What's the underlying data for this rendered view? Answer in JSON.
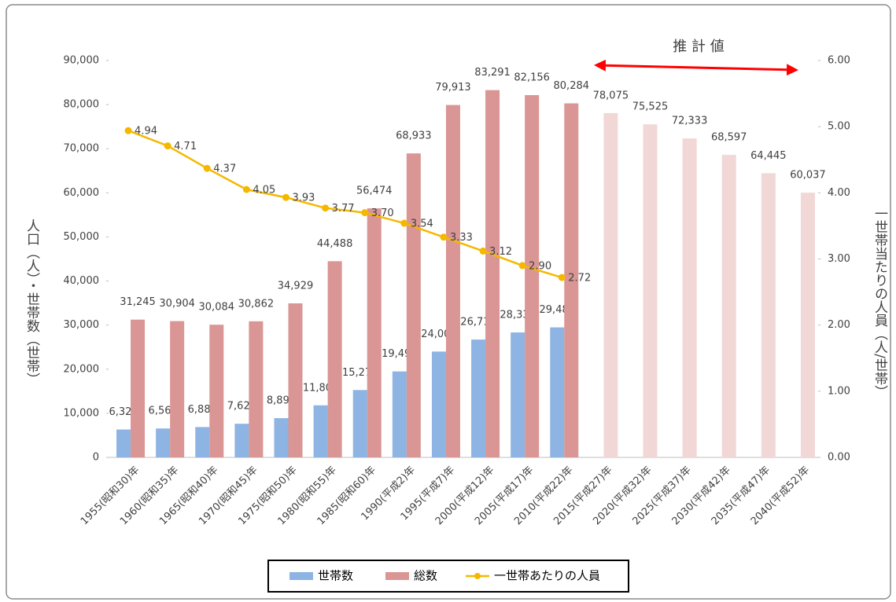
{
  "chart_data": {
    "type": "bar_line",
    "categories": [
      "1955(昭和30)年",
      "1960(昭和35)年",
      "1965(昭和40)年",
      "1970(昭和45)年",
      "1975(昭和50)年",
      "1980(昭和55)年",
      "1985(昭和60)年",
      "1990(平成2)年",
      "1995(平成7)年",
      "2000(平成12)年",
      "2005(平成17)年",
      "2010(平成22)年",
      "2015(平成27)年",
      "2020(平成32)年",
      "2025(平成37)年",
      "2030(平成42)年",
      "2035(平成47)年",
      "2040(平成52)年"
    ],
    "series": [
      {
        "name": "世帯数",
        "type": "bar",
        "color": "#8db4e2",
        "values": [
          6325,
          6564,
          6882,
          7627,
          8899,
          11803,
          15272,
          19490,
          24005,
          26716,
          28334,
          29481,
          null,
          null,
          null,
          null,
          null,
          null
        ],
        "value_labels": [
          "6,325",
          "6,564",
          "6,882",
          "7,627",
          "8,899",
          "11,803",
          "15,272",
          "19,490",
          "24,005",
          "26,716",
          "28,334",
          "29,481",
          null,
          null,
          null,
          null,
          null,
          null
        ]
      },
      {
        "name": "総数",
        "type": "bar",
        "color": "#d99694",
        "colors": [
          "#d99694",
          "#d99694",
          "#d99694",
          "#d99694",
          "#d99694",
          "#d99694",
          "#d99694",
          "#d99694",
          "#d99694",
          "#d99694",
          "#d99694",
          "#d99694",
          "#f2d7d7",
          "#f2d7d7",
          "#f2d7d7",
          "#f2d7d7",
          "#f2d7d7",
          "#f2d7d7"
        ],
        "values": [
          31245,
          30904,
          30084,
          30862,
          34929,
          44488,
          56474,
          68933,
          79913,
          83291,
          82156,
          80284,
          78075,
          75525,
          72333,
          68597,
          64445,
          60037
        ],
        "value_labels": [
          "31,245",
          "30,904",
          "30,084",
          "30,862",
          "34,929",
          "44,488",
          "56,474",
          "68,933",
          "79,913",
          "83,291",
          "82,156",
          "80,284",
          "78,075",
          "75,525",
          "72,333",
          "68,597",
          "64,445",
          "60,037"
        ]
      },
      {
        "name": "一世帯あたりの人員",
        "type": "line",
        "axis": "y2",
        "color": "#f5b800",
        "values": [
          4.94,
          4.71,
          4.37,
          4.05,
          3.93,
          3.77,
          3.7,
          3.54,
          3.33,
          3.12,
          2.9,
          2.72,
          null,
          null,
          null,
          null,
          null,
          null
        ],
        "value_labels": [
          "4.94",
          "4.71",
          "4.37",
          "4.05",
          "3.93",
          "3.77",
          "3.70",
          "3.54",
          "3.33",
          "3.12",
          "2.90",
          "2.72",
          null,
          null,
          null,
          null,
          null,
          null
        ]
      }
    ],
    "ylabel": "人口（人）・世帯数（世帯）",
    "y2label": "一世帯当たりの人員（人/世帯）",
    "annotation": "推 計 値",
    "annotation_color": "#ff0000",
    "ylim": [
      0,
      90000
    ],
    "yticks": [
      0,
      {
        "value": 10000,
        "label": "10,000"
      },
      {
        "value": 20000,
        "label": "20,000"
      },
      {
        "value": 30000,
        "label": "30,000"
      },
      {
        "value": 40000,
        "label": "40,000"
      },
      {
        "value": 50000,
        "label": "50,000"
      },
      {
        "value": 60000,
        "label": "60,000"
      },
      {
        "value": 70000,
        "label": "70,000"
      },
      {
        "value": 80000,
        "label": "80,000"
      },
      {
        "value": 90000,
        "label": "90,000"
      }
    ],
    "y2lim": [
      0,
      6
    ],
    "y2ticks": [
      {
        "value": 0,
        "label": "0.00"
      },
      {
        "value": 1,
        "label": "1.00"
      },
      {
        "value": 2,
        "label": "2.00"
      },
      {
        "value": 3,
        "label": "3.00"
      },
      {
        "value": 4,
        "label": "4.00"
      },
      {
        "value": 5,
        "label": "5.00"
      },
      {
        "value": 6,
        "label": "6.00"
      }
    ],
    "grid": false,
    "legend": "bottom"
  }
}
